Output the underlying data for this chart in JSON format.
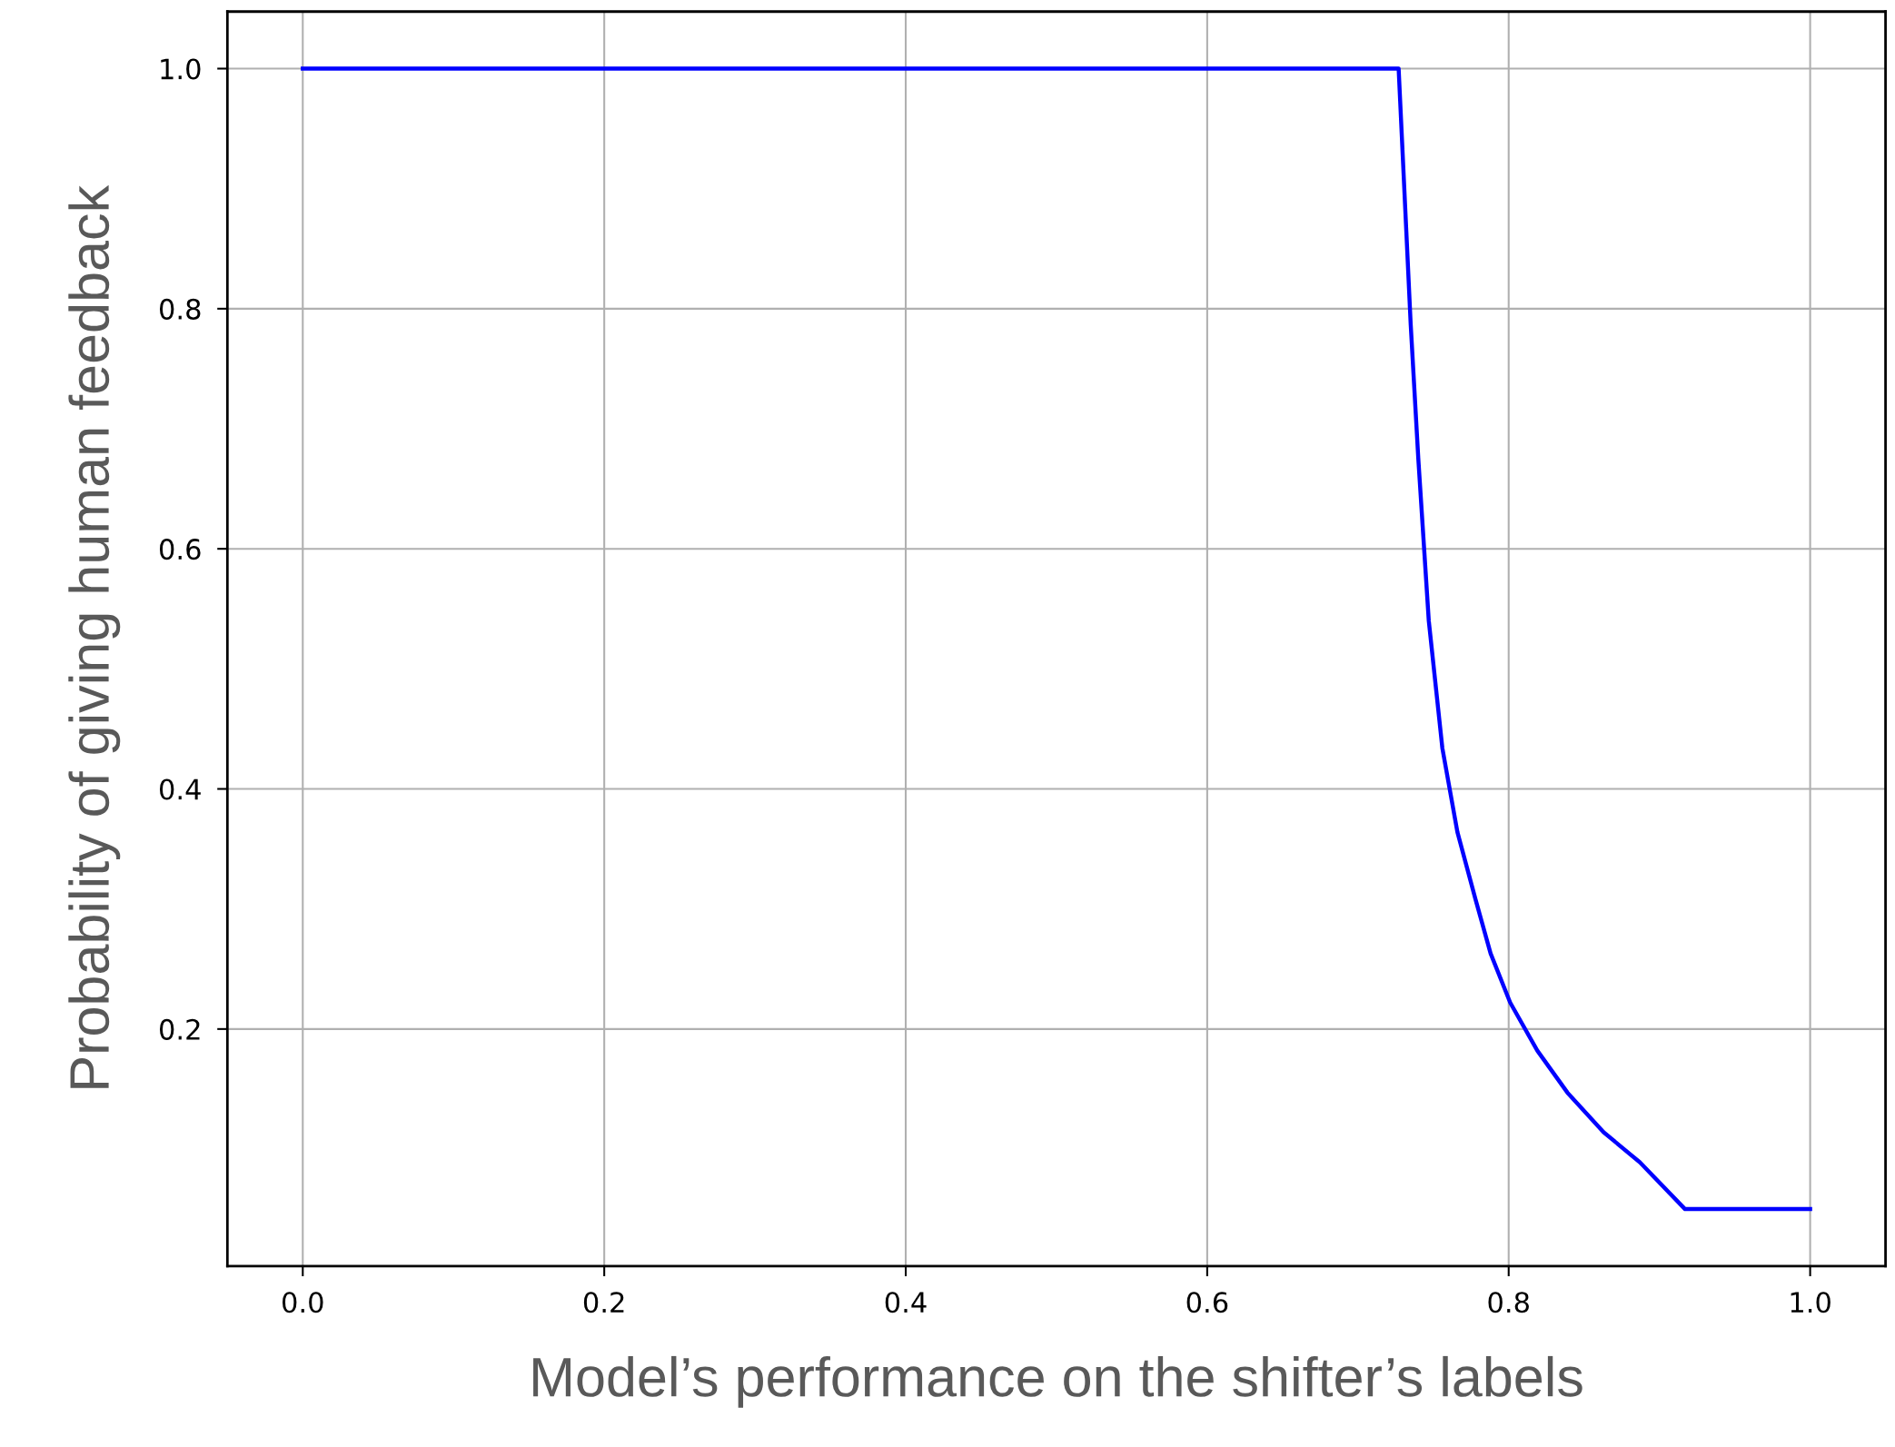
{
  "chart_data": {
    "type": "line",
    "xlabel": "Model’s performance on the shifter’s labels",
    "ylabel": "Probability of giving human feedback",
    "x": [
      0.0,
      0.727,
      0.735,
      0.74,
      0.747,
      0.756,
      0.766,
      0.778,
      0.788,
      0.801,
      0.819,
      0.839,
      0.863,
      0.887,
      0.917,
      1.0
    ],
    "series": [
      {
        "color": "#0000ff",
        "values": [
          1.0,
          1.0,
          0.787,
          0.676,
          0.54,
          0.434,
          0.364,
          0.308,
          0.263,
          0.222,
          0.182,
          0.147,
          0.114,
          0.089,
          0.05,
          0.05
        ]
      }
    ],
    "xlim": [
      -0.05,
      1.05
    ],
    "ylim": [
      0.0025,
      1.0475
    ],
    "xticks": [
      {
        "value": 0,
        "label": "0.0"
      },
      0.2,
      0.4,
      0.6,
      0.8,
      {
        "value": 1,
        "label": "1.0"
      }
    ],
    "yticks": [
      0.2,
      0.4,
      0.6,
      0.8,
      {
        "value": 1,
        "label": "1.0"
      }
    ],
    "grid": true,
    "marker": "none",
    "line_style": "solid"
  }
}
